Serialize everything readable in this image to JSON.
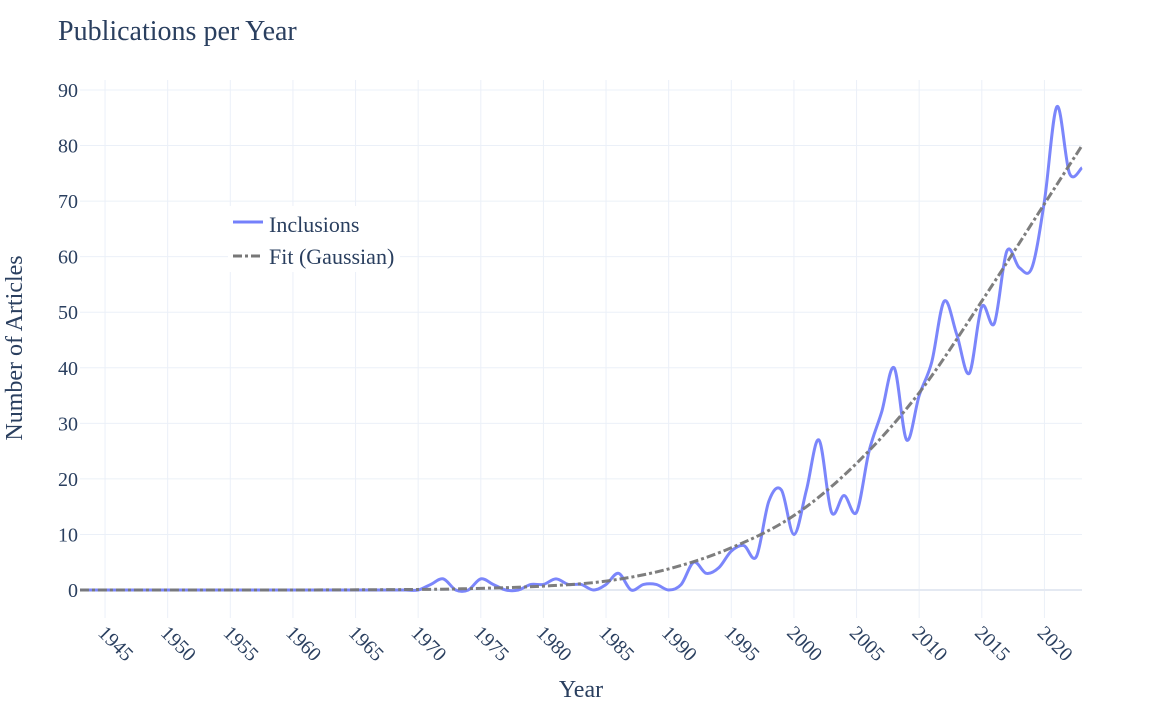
{
  "chart_data": {
    "type": "line",
    "title": "Publications per Year",
    "xlabel": "Year",
    "ylabel": "Number of Articles",
    "xlim": [
      1943,
      2023
    ],
    "ylim": [
      -5,
      92
    ],
    "xticks": [
      1945,
      1950,
      1955,
      1960,
      1965,
      1970,
      1975,
      1980,
      1985,
      1990,
      1995,
      2000,
      2005,
      2010,
      2015,
      2020
    ],
    "yticks": [
      0,
      10,
      20,
      30,
      40,
      50,
      60,
      70,
      80,
      90
    ],
    "grid": true,
    "legend_position": "upper-left inside",
    "series": [
      {
        "name": "Inclusions",
        "color": "#7480fb",
        "style": "solid",
        "x": [
          1943,
          1944,
          1945,
          1946,
          1947,
          1948,
          1949,
          1950,
          1951,
          1952,
          1953,
          1954,
          1955,
          1956,
          1957,
          1958,
          1959,
          1960,
          1961,
          1962,
          1963,
          1964,
          1965,
          1966,
          1967,
          1968,
          1969,
          1970,
          1971,
          1972,
          1973,
          1974,
          1975,
          1976,
          1977,
          1978,
          1979,
          1980,
          1981,
          1982,
          1983,
          1984,
          1985,
          1986,
          1987,
          1988,
          1989,
          1990,
          1991,
          1992,
          1993,
          1994,
          1995,
          1996,
          1997,
          1998,
          1999,
          2000,
          2001,
          2002,
          2003,
          2004,
          2005,
          2006,
          2007,
          2008,
          2009,
          2010,
          2011,
          2012,
          2013,
          2014,
          2015,
          2016,
          2017,
          2018,
          2019,
          2020,
          2021,
          2022,
          2023
        ],
        "values": [
          0,
          0,
          0,
          0,
          0,
          0,
          0,
          0,
          0,
          0,
          0,
          0,
          0,
          0,
          0,
          0,
          0,
          0,
          0,
          0,
          0,
          0,
          0,
          0,
          0,
          0,
          0,
          0,
          1,
          2,
          0,
          0,
          2,
          1,
          0,
          0,
          1,
          1,
          2,
          1,
          1,
          0,
          1,
          3,
          0,
          1,
          1,
          0,
          1,
          5,
          3,
          4,
          7,
          8,
          6,
          16,
          18,
          10,
          18,
          27,
          14,
          17,
          14,
          25,
          32,
          40,
          27,
          35,
          41,
          52,
          46,
          39,
          51,
          48,
          61,
          58,
          58,
          70,
          87,
          75,
          76
        ]
      },
      {
        "name": "Fit (Gaussian)",
        "color": "#777777",
        "style": "dashdot",
        "x": [
          1943,
          1950,
          1960,
          1970,
          1975,
          1980,
          1985,
          1990,
          1995,
          2000,
          2005,
          2010,
          2015,
          2020,
          2023
        ],
        "values": [
          0,
          0,
          0,
          0.1,
          0.3,
          0.7,
          1.6,
          3.8,
          7.6,
          13.4,
          22.8,
          35.5,
          52,
          69.5,
          80
        ]
      }
    ]
  }
}
